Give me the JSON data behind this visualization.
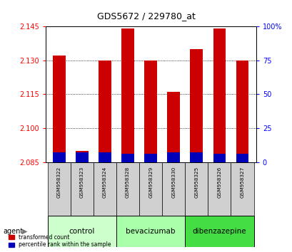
{
  "title": "GDS5672 / 229780_at",
  "samples": [
    "GSM958322",
    "GSM958323",
    "GSM958324",
    "GSM958328",
    "GSM958329",
    "GSM958330",
    "GSM958325",
    "GSM958326",
    "GSM958327"
  ],
  "red_values": [
    2.132,
    2.09,
    2.13,
    2.144,
    2.13,
    2.116,
    2.135,
    2.144,
    2.13
  ],
  "blue_values": [
    2.0893,
    2.0893,
    2.0893,
    2.0888,
    2.0888,
    2.0893,
    2.0893,
    2.0888,
    2.0888
  ],
  "baseline": 2.085,
  "ylim_left": [
    2.085,
    2.145
  ],
  "yticks_left": [
    2.085,
    2.1,
    2.115,
    2.13,
    2.145
  ],
  "yticks_right": [
    0,
    25,
    50,
    75,
    100
  ],
  "ytick_labels_right": [
    "0",
    "25",
    "50",
    "75",
    "100%"
  ],
  "groups": [
    {
      "label": "control",
      "indices": [
        0,
        1,
        2
      ],
      "color": "#ccffcc"
    },
    {
      "label": "bevacizumab",
      "indices": [
        3,
        4,
        5
      ],
      "color": "#aaffaa"
    },
    {
      "label": "dibenzazepine",
      "indices": [
        6,
        7,
        8
      ],
      "color": "#44dd44"
    }
  ],
  "agent_label": "agent",
  "legend_red": "transformed count",
  "legend_blue": "percentile rank within the sample",
  "red_color": "#cc0000",
  "blue_color": "#0000bb",
  "bar_width": 0.55,
  "background_color": "#ffffff",
  "plot_bg": "#ffffff",
  "sample_cell_color": "#d0d0d0"
}
